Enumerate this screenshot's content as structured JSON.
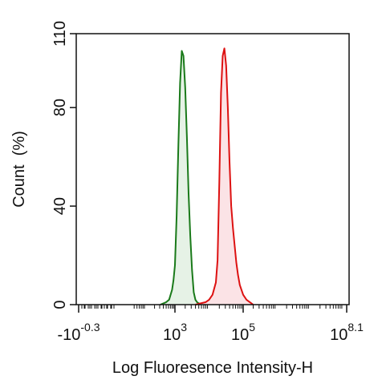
{
  "chart_data": {
    "type": "area",
    "title": "",
    "xlabel": "Log Fluoresence Intensity-H",
    "ylabel": "Count  (%)",
    "x_scale": "log (biexponential)",
    "xlim": [
      -0.3,
      8.1
    ],
    "ylim": [
      0,
      110
    ],
    "grid": false,
    "legend": "none",
    "x_tick_labels": [
      {
        "value": -0.3,
        "base": "-10",
        "exp": "-0.3"
      },
      {
        "value": 3,
        "base": "10",
        "exp": "3"
      },
      {
        "value": 5,
        "base": "10",
        "exp": "5"
      },
      {
        "value": 8.1,
        "base": "10",
        "exp": "8.1"
      }
    ],
    "y_ticks": [
      {
        "value": 0,
        "label": "0"
      },
      {
        "value": 40,
        "label": "40"
      },
      {
        "value": 80,
        "label": "80"
      },
      {
        "value": 110,
        "label": "110"
      }
    ],
    "series": [
      {
        "color": "#1a7a1a",
        "fill": "#e6f2e6",
        "x": [
          2.5,
          2.7,
          2.8,
          2.9,
          2.95,
          3.0,
          3.05,
          3.1,
          3.15,
          3.2,
          3.25,
          3.3,
          3.35,
          3.4,
          3.45,
          3.5,
          3.55,
          3.6,
          3.65,
          3.7,
          3.75,
          3.8,
          3.9
        ],
        "y": [
          0,
          1,
          2,
          6,
          10,
          16,
          36,
          65,
          90,
          103,
          101,
          88,
          68,
          45,
          28,
          14,
          5,
          2,
          1,
          0.5,
          0.3,
          0.2,
          0
        ]
      },
      {
        "color": "#dd1111",
        "fill": "#fbe3e6",
        "x": [
          3.6,
          3.9,
          4.0,
          4.1,
          4.2,
          4.25,
          4.3,
          4.35,
          4.4,
          4.45,
          4.5,
          4.55,
          4.6,
          4.65,
          4.7,
          4.75,
          4.8,
          4.85,
          4.9,
          5.0,
          5.1,
          5.2,
          5.3
        ],
        "y": [
          0,
          1,
          2,
          4,
          9,
          18,
          50,
          86,
          101,
          104,
          97,
          80,
          58,
          40,
          31,
          24,
          17,
          12,
          8,
          4,
          2,
          1,
          0
        ]
      }
    ]
  }
}
